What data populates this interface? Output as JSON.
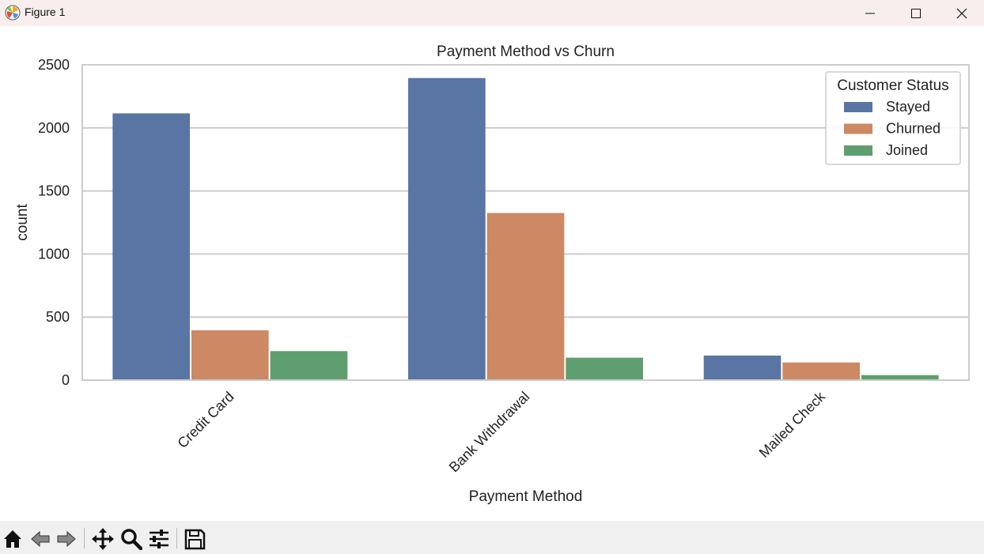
{
  "window": {
    "title": "Figure 1",
    "controls": [
      "minimize",
      "maximize",
      "close"
    ]
  },
  "toolbar": {
    "icons": [
      "home-icon",
      "back-icon",
      "forward-icon",
      "pan-icon",
      "zoom-icon",
      "configure-subplots-icon",
      "save-icon"
    ]
  },
  "chart_data": {
    "type": "bar",
    "title": "Payment Method vs Churn",
    "xlabel": "Payment Method",
    "ylabel": "count",
    "categories": [
      "Credit Card",
      "Bank Withdrawal",
      "Mailed Check"
    ],
    "series": [
      {
        "name": "Stayed",
        "values": [
          2115,
          2395,
          195
        ],
        "color": "#5875a4"
      },
      {
        "name": "Churned",
        "values": [
          395,
          1325,
          140
        ],
        "color": "#cc8963"
      },
      {
        "name": "Joined",
        "values": [
          230,
          178,
          40
        ],
        "color": "#5f9e6e"
      }
    ],
    "ylim": [
      0,
      2500
    ],
    "yticks": [
      "0",
      "500",
      "1000",
      "1500",
      "2000",
      "2500"
    ],
    "grid": true,
    "legend": {
      "title": "Customer Status",
      "placement": "top-right"
    }
  }
}
